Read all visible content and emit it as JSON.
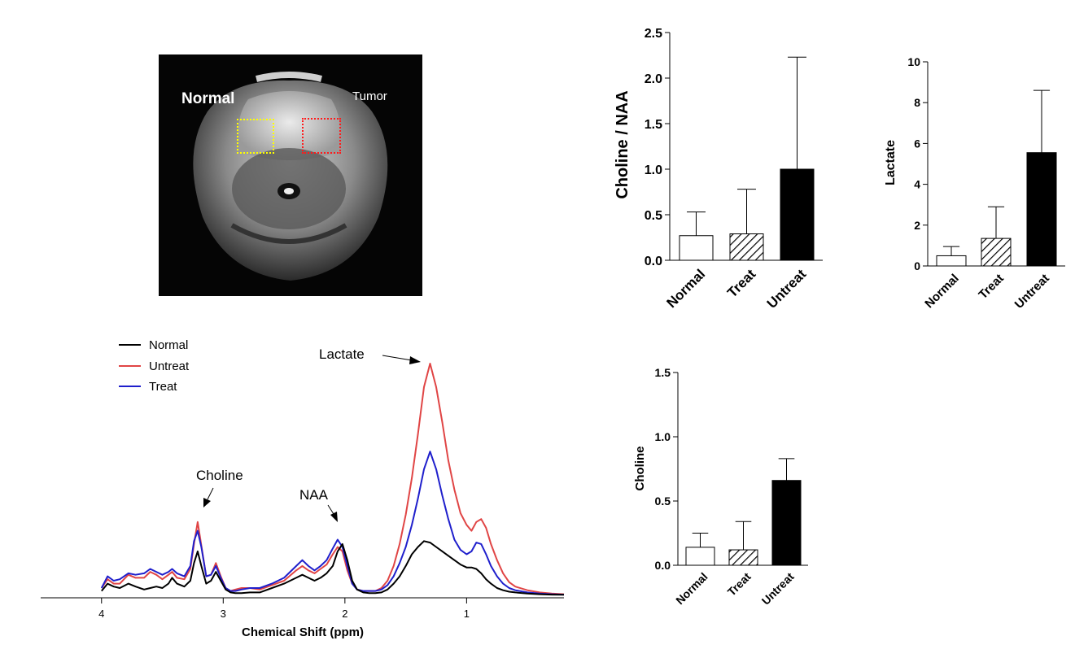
{
  "mri_image": {
    "normal_label": "Normal",
    "tumor_label": "Tumor",
    "normal_roi_color": "#ffff00",
    "tumor_roi_color": "#ff1a1a"
  },
  "chart_data": [
    {
      "type": "line",
      "title": "",
      "xlabel": "Chemical Shift (ppm)",
      "ylabel": "",
      "xlim": [
        4.5,
        0.2
      ],
      "x_ticks": [
        "4",
        "3",
        "2",
        "1"
      ],
      "x_tick_values": [
        4,
        3,
        2,
        1
      ],
      "legend": [
        "Normal",
        "Untreat",
        "Treat"
      ],
      "annotations": [
        {
          "text": "Lactate",
          "ppm": 1.28
        },
        {
          "text": "Choline",
          "ppm": 3.2
        },
        {
          "text": "NAA",
          "ppm": 2.02
        }
      ],
      "series": [
        {
          "name": "Normal",
          "color": "#000000",
          "x": [
            4.0,
            3.95,
            3.9,
            3.85,
            3.78,
            3.72,
            3.65,
            3.6,
            3.55,
            3.5,
            3.45,
            3.42,
            3.38,
            3.32,
            3.27,
            3.24,
            3.21,
            3.18,
            3.14,
            3.1,
            3.06,
            3.02,
            2.98,
            2.94,
            2.9,
            2.85,
            2.78,
            2.7,
            2.6,
            2.5,
            2.4,
            2.35,
            2.3,
            2.25,
            2.2,
            2.15,
            2.1,
            2.06,
            2.02,
            1.98,
            1.94,
            1.9,
            1.85,
            1.8,
            1.75,
            1.7,
            1.65,
            1.6,
            1.55,
            1.5,
            1.45,
            1.4,
            1.35,
            1.3,
            1.25,
            1.2,
            1.15,
            1.1,
            1.05,
            1.0,
            0.96,
            0.92,
            0.88,
            0.84,
            0.8,
            0.75,
            0.7,
            0.65,
            0.6,
            0.5,
            0.4,
            0.3,
            0.2
          ],
          "y": [
            0.03,
            0.08,
            0.06,
            0.05,
            0.08,
            0.06,
            0.04,
            0.05,
            0.06,
            0.05,
            0.08,
            0.12,
            0.08,
            0.06,
            0.1,
            0.22,
            0.3,
            0.2,
            0.08,
            0.1,
            0.16,
            0.1,
            0.04,
            0.02,
            0.015,
            0.015,
            0.02,
            0.02,
            0.05,
            0.08,
            0.12,
            0.14,
            0.12,
            0.1,
            0.12,
            0.15,
            0.2,
            0.3,
            0.35,
            0.24,
            0.1,
            0.04,
            0.02,
            0.015,
            0.015,
            0.02,
            0.04,
            0.08,
            0.13,
            0.2,
            0.28,
            0.33,
            0.37,
            0.36,
            0.33,
            0.3,
            0.27,
            0.24,
            0.21,
            0.19,
            0.19,
            0.18,
            0.15,
            0.11,
            0.08,
            0.05,
            0.035,
            0.025,
            0.02,
            0.012,
            0.008,
            0.005,
            0.004
          ]
        },
        {
          "name": "Untreat",
          "color": "#e04545",
          "x": [
            4.0,
            3.95,
            3.9,
            3.85,
            3.78,
            3.72,
            3.65,
            3.6,
            3.55,
            3.5,
            3.45,
            3.42,
            3.38,
            3.32,
            3.27,
            3.24,
            3.21,
            3.18,
            3.14,
            3.1,
            3.06,
            3.02,
            2.98,
            2.94,
            2.9,
            2.85,
            2.78,
            2.7,
            2.6,
            2.5,
            2.4,
            2.35,
            2.3,
            2.25,
            2.2,
            2.15,
            2.1,
            2.06,
            2.02,
            1.98,
            1.94,
            1.9,
            1.85,
            1.8,
            1.75,
            1.7,
            1.65,
            1.6,
            1.55,
            1.5,
            1.45,
            1.4,
            1.35,
            1.3,
            1.25,
            1.2,
            1.15,
            1.1,
            1.05,
            1.0,
            0.96,
            0.92,
            0.88,
            0.84,
            0.8,
            0.75,
            0.7,
            0.65,
            0.6,
            0.5,
            0.4,
            0.3,
            0.2
          ],
          "y": [
            0.05,
            0.11,
            0.08,
            0.08,
            0.14,
            0.12,
            0.12,
            0.16,
            0.14,
            0.11,
            0.14,
            0.16,
            0.12,
            0.11,
            0.18,
            0.35,
            0.5,
            0.34,
            0.13,
            0.14,
            0.22,
            0.13,
            0.05,
            0.03,
            0.04,
            0.05,
            0.05,
            0.04,
            0.07,
            0.1,
            0.17,
            0.2,
            0.17,
            0.15,
            0.18,
            0.21,
            0.28,
            0.33,
            0.3,
            0.17,
            0.08,
            0.04,
            0.03,
            0.03,
            0.03,
            0.05,
            0.1,
            0.2,
            0.35,
            0.55,
            0.8,
            1.1,
            1.42,
            1.58,
            1.42,
            1.18,
            0.92,
            0.72,
            0.56,
            0.48,
            0.44,
            0.5,
            0.52,
            0.46,
            0.35,
            0.24,
            0.15,
            0.09,
            0.06,
            0.035,
            0.02,
            0.012,
            0.008
          ]
        },
        {
          "name": "Treat",
          "color": "#1f1fcc",
          "x": [
            4.0,
            3.95,
            3.9,
            3.85,
            3.78,
            3.72,
            3.65,
            3.6,
            3.55,
            3.5,
            3.45,
            3.42,
            3.38,
            3.32,
            3.27,
            3.24,
            3.21,
            3.18,
            3.14,
            3.1,
            3.06,
            3.02,
            2.98,
            2.94,
            2.9,
            2.85,
            2.78,
            2.7,
            2.6,
            2.5,
            2.4,
            2.35,
            2.3,
            2.25,
            2.2,
            2.15,
            2.1,
            2.06,
            2.02,
            1.98,
            1.94,
            1.9,
            1.85,
            1.8,
            1.75,
            1.7,
            1.65,
            1.6,
            1.55,
            1.5,
            1.45,
            1.4,
            1.35,
            1.3,
            1.25,
            1.2,
            1.15,
            1.1,
            1.05,
            1.0,
            0.96,
            0.92,
            0.88,
            0.84,
            0.8,
            0.75,
            0.7,
            0.65,
            0.6,
            0.5,
            0.4,
            0.3,
            0.2
          ],
          "y": [
            0.05,
            0.13,
            0.1,
            0.11,
            0.15,
            0.14,
            0.15,
            0.18,
            0.16,
            0.14,
            0.16,
            0.18,
            0.15,
            0.13,
            0.2,
            0.37,
            0.44,
            0.33,
            0.13,
            0.14,
            0.2,
            0.12,
            0.05,
            0.03,
            0.03,
            0.04,
            0.05,
            0.05,
            0.08,
            0.12,
            0.2,
            0.24,
            0.2,
            0.17,
            0.2,
            0.24,
            0.32,
            0.38,
            0.33,
            0.2,
            0.08,
            0.04,
            0.03,
            0.03,
            0.03,
            0.04,
            0.07,
            0.13,
            0.22,
            0.33,
            0.48,
            0.66,
            0.86,
            0.98,
            0.86,
            0.68,
            0.52,
            0.38,
            0.31,
            0.28,
            0.3,
            0.36,
            0.35,
            0.28,
            0.2,
            0.13,
            0.08,
            0.05,
            0.035,
            0.02,
            0.012,
            0.008,
            0.005
          ]
        }
      ]
    },
    {
      "type": "bar",
      "categories": [
        "Normal",
        "Treat",
        "Untreat"
      ],
      "values": [
        0.27,
        0.29,
        1.0
      ],
      "errors": [
        0.26,
        0.49,
        1.23
      ],
      "fills": [
        "white",
        "hatch",
        "black"
      ],
      "title": "",
      "xlabel": "",
      "ylabel": "Choline / NAA",
      "ylim": [
        0,
        2.5
      ],
      "y_ticks": [
        "0.0",
        "0.5",
        "1.0",
        "1.5",
        "2.0",
        "2.5"
      ],
      "y_tick_values": [
        0,
        0.5,
        1.0,
        1.5,
        2.0,
        2.5
      ]
    },
    {
      "type": "bar",
      "categories": [
        "Normal",
        "Treat",
        "Untreat"
      ],
      "values": [
        0.5,
        1.35,
        5.55
      ],
      "errors": [
        0.45,
        1.55,
        3.05
      ],
      "fills": [
        "white",
        "hatch",
        "black"
      ],
      "title": "",
      "xlabel": "",
      "ylabel": "Lactate",
      "ylim": [
        0,
        10
      ],
      "y_ticks": [
        "0",
        "2",
        "4",
        "6",
        "8",
        "10"
      ],
      "y_tick_values": [
        0,
        2,
        4,
        6,
        8,
        10
      ]
    },
    {
      "type": "bar",
      "categories": [
        "Normal",
        "Treat",
        "Untreat"
      ],
      "values": [
        0.14,
        0.12,
        0.66
      ],
      "errors": [
        0.11,
        0.22,
        0.17
      ],
      "fills": [
        "white",
        "hatch",
        "black"
      ],
      "title": "",
      "xlabel": "",
      "ylabel": "Choline",
      "ylim": [
        0,
        1.5
      ],
      "y_ticks": [
        "0.0",
        "0.5",
        "1.0",
        "1.5"
      ],
      "y_tick_values": [
        0,
        0.5,
        1.0,
        1.5
      ]
    }
  ]
}
